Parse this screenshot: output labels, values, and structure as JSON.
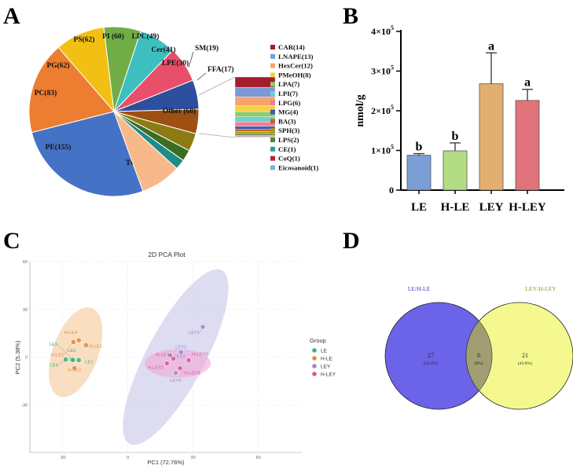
{
  "panels": {
    "a": "A",
    "b": "B",
    "c": "C",
    "d": "D"
  },
  "chart_data": [
    {
      "type": "pie",
      "panel": "A",
      "slices": [
        {
          "label": "TG(234)",
          "value": 234,
          "color": "#4472C4"
        },
        {
          "label": "PE(155)",
          "value": 155,
          "color": "#ED7D31"
        },
        {
          "label": "PC(83)",
          "value": 83,
          "color": "#F2C012"
        },
        {
          "label": "PG(62)",
          "value": 62,
          "color": "#70AD47"
        },
        {
          "label": "PS(62)",
          "value": 62,
          "color": "#3DBFBF"
        },
        {
          "label": "PI (60)",
          "value": 60,
          "color": "#E84F6A"
        },
        {
          "label": "LPC(49)",
          "value": 49,
          "color": "#2E4E9E"
        },
        {
          "label": "Cer(41)",
          "value": 41,
          "color": "#9E4F12"
        },
        {
          "label": "LPE(30)",
          "value": 30,
          "color": "#8C7B12"
        },
        {
          "label": "SM(19)",
          "value": 19,
          "color": "#3B6E24"
        },
        {
          "label": "FFA(17)",
          "value": 17,
          "color": "#1E8A8A"
        },
        {
          "label": "Other (68)",
          "value": 68,
          "color": "#F8B98A"
        }
      ],
      "other_breakdown": [
        {
          "label": "CAR(14)",
          "value": 14,
          "color": "#A31D2B"
        },
        {
          "label": "LNAPE(13)",
          "value": 13,
          "color": "#7B97D6"
        },
        {
          "label": "HexCer(12)",
          "value": 12,
          "color": "#F5A46A"
        },
        {
          "label": "PMeOH(8)",
          "value": 8,
          "color": "#F7D04A"
        },
        {
          "label": "LPA(7)",
          "value": 7,
          "color": "#8FCB6A"
        },
        {
          "label": "LPI(7)",
          "value": 7,
          "color": "#6CD3D3"
        },
        {
          "label": "LPG(6)",
          "value": 6,
          "color": "#F07C91"
        },
        {
          "label": "MG(4)",
          "value": 4,
          "color": "#3A5CB0"
        },
        {
          "label": "BA(3)",
          "value": 3,
          "color": "#C0651E"
        },
        {
          "label": "SPH(3)",
          "value": 3,
          "color": "#B09A1E"
        },
        {
          "label": "LPS(2)",
          "value": 2,
          "color": "#4E8A30"
        },
        {
          "label": "CE(1)",
          "value": 1,
          "color": "#28A0A0"
        },
        {
          "label": "CoQ(1)",
          "value": 1,
          "color": "#C21E3A"
        },
        {
          "label": "Eicosanoid(1)",
          "value": 1,
          "color": "#7AB0E0"
        }
      ]
    },
    {
      "type": "bar",
      "panel": "B",
      "categories": [
        "LE",
        "H-LE",
        "LEY",
        "H-LEY"
      ],
      "values": [
        88000,
        99000,
        268000,
        226000
      ],
      "errors": [
        4000,
        20000,
        78000,
        28000
      ],
      "significance": [
        "b",
        "b",
        "a",
        "a"
      ],
      "colors": [
        "#7B9ED6",
        "#B4DC84",
        "#E3AF70",
        "#E0737A"
      ],
      "ylabel": "nmol/g",
      "ylim": [
        0,
        400000
      ],
      "yticks": [
        {
          "value": 0,
          "base": "0",
          "exp": ""
        },
        {
          "value": 100000,
          "base": "1×10",
          "exp": "5"
        },
        {
          "value": 200000,
          "base": "2×10",
          "exp": "5"
        },
        {
          "value": 300000,
          "base": "3×10",
          "exp": "5"
        },
        {
          "value": 400000,
          "base": "4×10",
          "exp": "5"
        }
      ]
    },
    {
      "type": "scatter",
      "panel": "C",
      "title": "2D PCA Plot",
      "xlabel": "PC1 (72.76%)",
      "ylabel": "PC2 (5.38%)",
      "xlim": [
        -45,
        80
      ],
      "ylim": [
        -60,
        60
      ],
      "xticks": [
        -30,
        0,
        30,
        60
      ],
      "yticks": [
        -30,
        0,
        30,
        60
      ],
      "ytick_labels": [
        "-30",
        "0",
        "30",
        "60"
      ],
      "xtick_labels": [
        "-30",
        "0",
        "30",
        "60"
      ],
      "legend_title": "Group",
      "groups": [
        {
          "name": "LE",
          "color": "#3CB371",
          "points": [
            [
              -28.5,
              -1.5
            ],
            [
              -25.8,
              -1.7
            ],
            [
              -25.2,
              -1.8
            ],
            [
              -22.5,
              -1.9
            ]
          ],
          "labels": [
            "LE4",
            "LE2",
            "LE3",
            "LE1"
          ]
        },
        {
          "name": "H-LE",
          "color": "#E8863A",
          "points": [
            [
              -22.5,
              10.5
            ],
            [
              -25,
              9.5
            ],
            [
              -19.2,
              7.5
            ],
            [
              -24.5,
              -7
            ]
          ],
          "labels": [
            "H-LE4",
            "H-LE2",
            "H-LE1",
            "H-LE3"
          ]
        },
        {
          "name": "LEY",
          "color": "#9A8CC8",
          "points": [
            [
              34.5,
              19
            ],
            [
              24.5,
              3
            ],
            [
              19.5,
              1
            ],
            [
              22,
              -10
            ]
          ],
          "labels": [
            "LEY1",
            "LEY2",
            "LEY3",
            "LEY4"
          ]
        },
        {
          "name": "H-LEY",
          "color": "#E055A0",
          "points": [
            [
              28,
              -2
            ],
            [
              21,
              -1
            ],
            [
              18,
              -4
            ],
            [
              24,
              -7
            ]
          ],
          "labels": [
            "H-LEY3",
            "H-LEY4",
            "H-LEY2",
            "H-LEY1"
          ]
        }
      ],
      "ellipses": [
        {
          "group": "H-LE",
          "cx": -24,
          "cy": 3,
          "rx": 20,
          "ry": 16,
          "fill": "#F5C89A"
        },
        {
          "group": "LEY",
          "cx": 22,
          "cy": 0,
          "rx": 60,
          "ry": 18,
          "fill": "#C7C4E8"
        },
        {
          "group": "H-LEY",
          "cx": 23,
          "cy": -4,
          "rx": 19,
          "ry": 7,
          "fill": "#F2A7D6"
        }
      ]
    },
    {
      "type": "venn",
      "panel": "D",
      "sets": [
        {
          "name": "LE/H-LE",
          "color": "#6B63E8",
          "unique": "27",
          "unique_pct": "(56.3%)"
        },
        {
          "name": "LEY/H-LEY",
          "color": "#F1F56A",
          "unique": "21",
          "unique_pct": "(43.8%)"
        }
      ],
      "intersection": {
        "value": "0",
        "pct": "(0%)"
      }
    }
  ]
}
